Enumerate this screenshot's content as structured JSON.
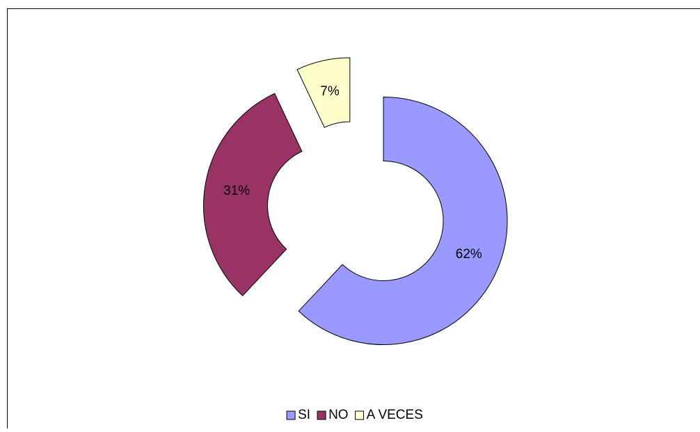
{
  "chart_data": {
    "type": "pie",
    "donut": true,
    "exploded": true,
    "categories": [
      "SI",
      "NO",
      "A VECES"
    ],
    "values": [
      62,
      31,
      7
    ],
    "value_labels": [
      "62%",
      "31%",
      "7%"
    ],
    "colors": [
      "#9999ff",
      "#993366",
      "#ffffcc"
    ],
    "legend": "bottom"
  }
}
